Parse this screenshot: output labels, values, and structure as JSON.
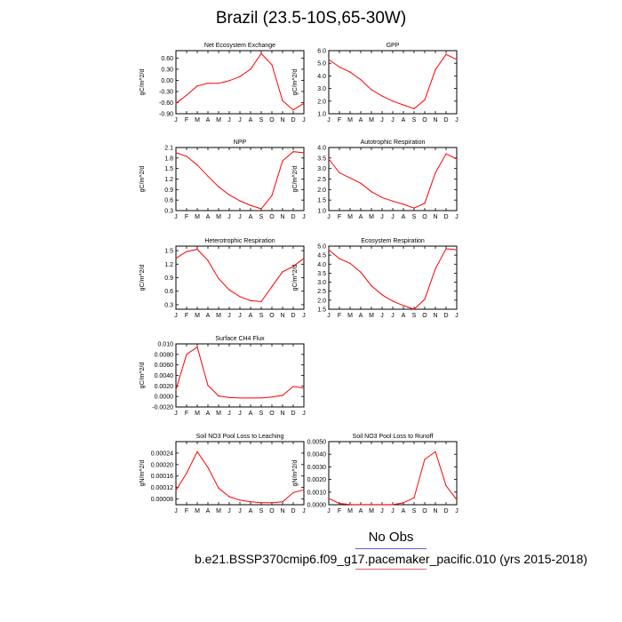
{
  "title": "Brazil (23.5-10S,65-30W)",
  "legend": {
    "obs_label": "No Obs",
    "obs_line_color": "#5b5bd6"
  },
  "case": {
    "label": "b.e21.BSSP370cmip6.f09_g17.pacemaker_pacific.010 (yrs 2015-2018)",
    "line_color": "#e06070"
  },
  "line_color": "#ff0000",
  "chart_data": [
    {
      "type": "line",
      "title": "Net Ecosystem Exchange",
      "ylabel": "gC/m^2/d",
      "categories": [
        "J",
        "F",
        "M",
        "A",
        "M",
        "J",
        "J",
        "A",
        "S",
        "O",
        "N",
        "D",
        "J"
      ],
      "yticks": [
        "0.60",
        "0.30",
        "0.00",
        "-0.30",
        "-0.60",
        "-0.90"
      ],
      "ytick_values": [
        0.6,
        0.3,
        0.0,
        -0.3,
        -0.6,
        -0.9
      ],
      "ylim": [
        -0.9,
        0.8
      ],
      "values": [
        -0.62,
        -0.4,
        -0.15,
        -0.08,
        -0.08,
        -0.01,
        0.1,
        0.3,
        0.72,
        0.42,
        -0.55,
        -0.8,
        -0.62
      ]
    },
    {
      "type": "line",
      "title": "GPP",
      "ylabel": "gC/m^2/d",
      "categories": [
        "J",
        "F",
        "M",
        "A",
        "M",
        "J",
        "J",
        "A",
        "S",
        "O",
        "N",
        "D",
        "J"
      ],
      "yticks": [
        "6.0",
        "5.0",
        "4.0",
        "3.0",
        "2.0",
        "1.0"
      ],
      "ytick_values": [
        6.0,
        5.0,
        4.0,
        3.0,
        2.0,
        1.0
      ],
      "ylim": [
        1.0,
        6.0
      ],
      "values": [
        5.3,
        4.7,
        4.3,
        3.7,
        2.9,
        2.4,
        2.0,
        1.7,
        1.4,
        2.1,
        4.5,
        5.7,
        5.3
      ]
    },
    {
      "type": "line",
      "title": "NPP",
      "ylabel": "gC/m^2/d",
      "categories": [
        "J",
        "F",
        "M",
        "A",
        "M",
        "J",
        "J",
        "A",
        "S",
        "O",
        "N",
        "D",
        "J"
      ],
      "yticks": [
        "2.1",
        "1.8",
        "1.5",
        "1.2",
        "0.9",
        "0.6",
        "0.3"
      ],
      "ytick_values": [
        2.1,
        1.8,
        1.5,
        1.2,
        0.9,
        0.6,
        0.3
      ],
      "ylim": [
        0.3,
        2.1
      ],
      "values": [
        1.95,
        1.85,
        1.6,
        1.28,
        0.98,
        0.75,
        0.58,
        0.45,
        0.35,
        0.73,
        1.72,
        1.98,
        1.95
      ]
    },
    {
      "type": "line",
      "title": "Autotrophic Respiration",
      "ylabel": "gC/m^2/d",
      "categories": [
        "J",
        "F",
        "M",
        "A",
        "M",
        "J",
        "J",
        "A",
        "S",
        "O",
        "N",
        "D",
        "J"
      ],
      "yticks": [
        "4.0",
        "3.5",
        "3.0",
        "2.5",
        "2.0",
        "1.5",
        "1.0"
      ],
      "ytick_values": [
        4.0,
        3.5,
        3.0,
        2.5,
        2.0,
        1.5,
        1.0
      ],
      "ylim": [
        1.0,
        4.0
      ],
      "values": [
        3.45,
        2.8,
        2.55,
        2.3,
        1.9,
        1.62,
        1.45,
        1.3,
        1.12,
        1.35,
        2.8,
        3.7,
        3.45
      ]
    },
    {
      "type": "line",
      "title": "Heterotrophic Respiration",
      "ylabel": "gC/m^2/d",
      "categories": [
        "J",
        "F",
        "M",
        "A",
        "M",
        "J",
        "J",
        "A",
        "S",
        "O",
        "N",
        "D",
        "J"
      ],
      "yticks": [
        "1.5",
        "1.2",
        "0.9",
        "0.6",
        "0.3"
      ],
      "ytick_values": [
        1.5,
        1.2,
        0.9,
        0.6,
        0.3
      ],
      "ylim": [
        0.2,
        1.6
      ],
      "values": [
        1.33,
        1.48,
        1.53,
        1.28,
        0.88,
        0.63,
        0.48,
        0.39,
        0.37,
        0.7,
        1.03,
        1.15,
        1.33
      ]
    },
    {
      "type": "line",
      "title": "Ecosystem Respiration",
      "ylabel": "gC/m^2/d",
      "categories": [
        "J",
        "F",
        "M",
        "A",
        "M",
        "J",
        "J",
        "A",
        "S",
        "O",
        "N",
        "D",
        "J"
      ],
      "yticks": [
        "5.0",
        "4.5",
        "4.0",
        "3.5",
        "3.0",
        "2.5",
        "2.0",
        "1.5"
      ],
      "ytick_values": [
        5.0,
        4.5,
        4.0,
        3.5,
        3.0,
        2.5,
        2.0,
        1.5
      ],
      "ylim": [
        1.5,
        5.0
      ],
      "values": [
        4.8,
        4.3,
        4.05,
        3.55,
        2.8,
        2.3,
        1.95,
        1.7,
        1.5,
        2.05,
        3.75,
        4.85,
        4.8
      ]
    },
    {
      "type": "line",
      "title": "Surface CH4 Flux",
      "ylabel": "gC/m^2/d",
      "categories": [
        "J",
        "F",
        "M",
        "A",
        "M",
        "J",
        "J",
        "A",
        "S",
        "O",
        "N",
        "D",
        "J"
      ],
      "yticks": [
        "0.010",
        "0.0080",
        "0.0060",
        "0.0040",
        "0.0020",
        "0.0000",
        "-0.0020"
      ],
      "ytick_values": [
        0.01,
        0.008,
        0.006,
        0.004,
        0.002,
        0.0,
        -0.002
      ],
      "ylim": [
        -0.002,
        0.01
      ],
      "values": [
        0.0013,
        0.008,
        0.0094,
        0.0021,
        0.0001,
        -0.0002,
        -0.0003,
        -0.0003,
        -0.0003,
        -0.0001,
        0.0002,
        0.0019,
        0.0016
      ]
    },
    {
      "type": "line",
      "title": "Soil NO3 Pool Loss to Leaching",
      "ylabel": "gN/m^2/d",
      "categories": [
        "J",
        "F",
        "M",
        "A",
        "M",
        "J",
        "J",
        "A",
        "S",
        "O",
        "N",
        "D",
        "J"
      ],
      "yticks": [
        "0.00024",
        "0.00020",
        "0.00016",
        "0.00012",
        "0.00008"
      ],
      "ytick_values": [
        0.00024,
        0.0002,
        0.00016,
        0.00012,
        8e-05
      ],
      "ylim": [
        6e-05,
        0.00028
      ],
      "values": [
        0.00011,
        0.00017,
        0.000245,
        0.00019,
        0.000118,
        8.8e-05,
        7.6e-05,
        7e-05,
        6.7e-05,
        6.7e-05,
        7e-05,
        0.000102,
        0.000112
      ]
    },
    {
      "type": "line",
      "title": "Soil NO3 Pool Loss to Runoff",
      "ylabel": "gN/m^2/d",
      "categories": [
        "J",
        "F",
        "M",
        "A",
        "M",
        "J",
        "J",
        "A",
        "S",
        "O",
        "N",
        "D",
        "J"
      ],
      "yticks": [
        "0.0050",
        "0.0040",
        "0.0030",
        "0.0020",
        "0.0010",
        "0.0000"
      ],
      "ytick_values": [
        0.005,
        0.004,
        0.003,
        0.002,
        0.001,
        0.0
      ],
      "ylim": [
        0.0,
        0.005
      ],
      "values": [
        0.0005,
        0.0001,
        2e-05,
        1e-05,
        1e-05,
        1e-05,
        1e-05,
        0.00015,
        0.00055,
        0.0036,
        0.0042,
        0.0015,
        0.0004
      ]
    }
  ]
}
